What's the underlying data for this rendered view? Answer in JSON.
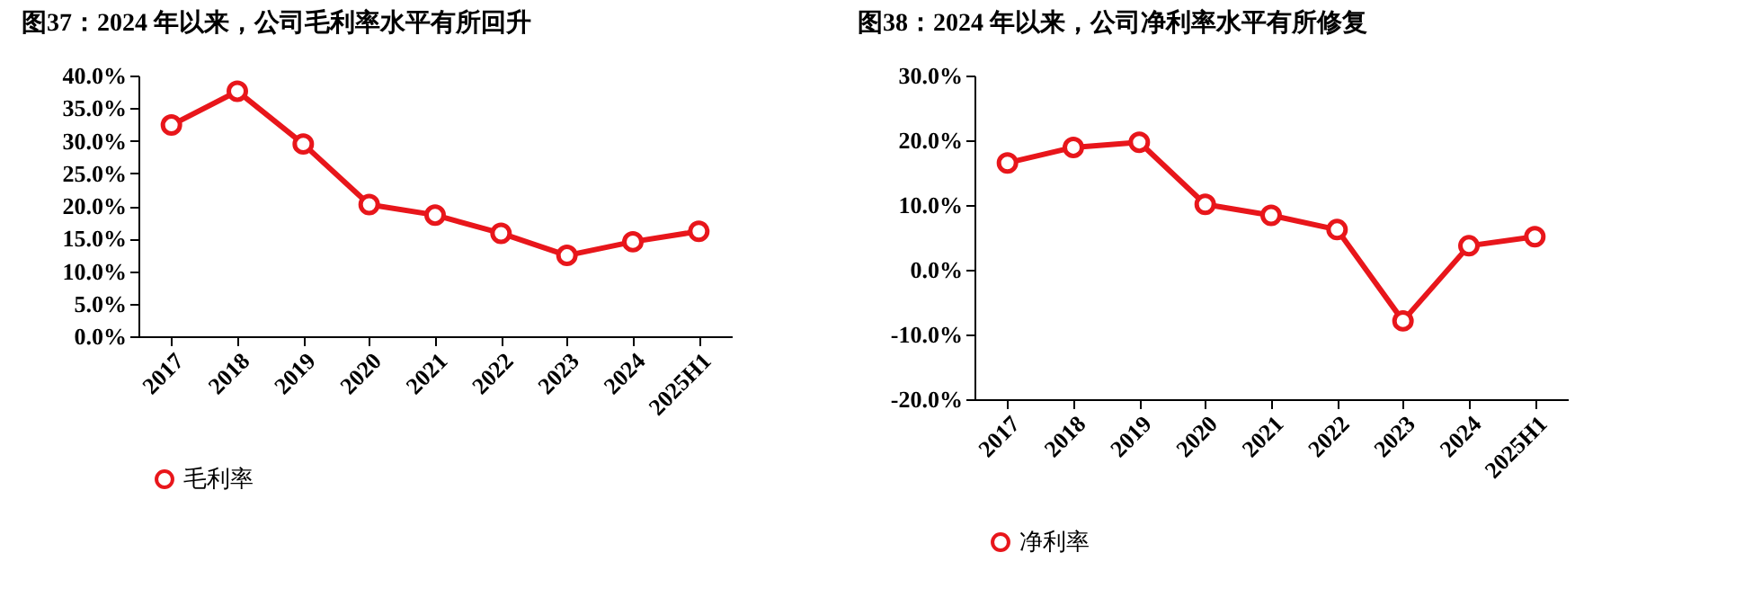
{
  "chart_data": [
    {
      "type": "line",
      "title": "图37：2024 年以来，公司毛利率水平有所回升",
      "categories": [
        "2017",
        "2018",
        "2019",
        "2020",
        "2021",
        "2022",
        "2023",
        "2024",
        "2025H1"
      ],
      "series": [
        {
          "name": "毛利率",
          "color": "#e8161b",
          "values": [
            32.4,
            37.6,
            29.5,
            20.2,
            18.6,
            15.8,
            12.4,
            14.5,
            16.1
          ]
        }
      ],
      "ylim": [
        0,
        40
      ],
      "yticks": [
        {
          "value": 0,
          "label": "0.0%"
        },
        {
          "value": 5,
          "label": "5.0%"
        },
        {
          "value": 10,
          "label": "10.0%"
        },
        {
          "value": 15,
          "label": "15.0%"
        },
        {
          "value": 20,
          "label": "20.0%"
        },
        {
          "value": 25,
          "label": "25.0%"
        },
        {
          "value": 30,
          "label": "30.0%"
        },
        {
          "value": 35,
          "label": "35.0%"
        },
        {
          "value": 40,
          "label": "40.0%"
        }
      ],
      "grid": false,
      "legend": "bottom",
      "marker": "circle",
      "line_style": "solid"
    },
    {
      "type": "line",
      "title": "图38：2024 年以来，公司净利率水平有所修复",
      "categories": [
        "2017",
        "2018",
        "2019",
        "2020",
        "2021",
        "2022",
        "2023",
        "2024",
        "2025H1"
      ],
      "series": [
        {
          "name": "净利率",
          "color": "#e8161b",
          "values": [
            16.5,
            18.9,
            19.7,
            10.1,
            8.4,
            6.2,
            -7.9,
            3.7,
            5.1
          ]
        }
      ],
      "ylim": [
        -20,
        30
      ],
      "yticks": [
        {
          "value": -20,
          "label": "-20.0%"
        },
        {
          "value": -10,
          "label": "-10.0%"
        },
        {
          "value": 0,
          "label": "0.0%"
        },
        {
          "value": 10,
          "label": "10.0%"
        },
        {
          "value": 20,
          "label": "20.0%"
        },
        {
          "value": 30,
          "label": "30.0%"
        }
      ],
      "grid": false,
      "legend": "bottom",
      "marker": "circle",
      "line_style": "solid"
    }
  ]
}
